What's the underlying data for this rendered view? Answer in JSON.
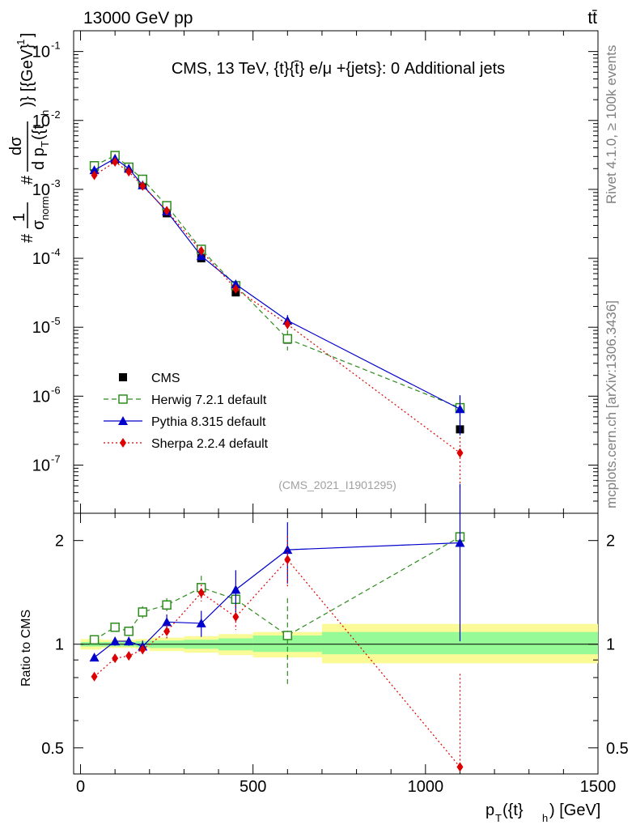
{
  "header": {
    "left": "13000 GeV pp",
    "right": "tt̄"
  },
  "side_labels": {
    "rivet": "Rivet 4.1.0, ≥ 100k events",
    "mcplots": "mcplots.cern.ch [arXiv:1306.3436]"
  },
  "chart_data": [
    {
      "type": "scatter",
      "panel": "main",
      "title": "CMS, 13 TeV, {t}{t̄} e/μ +{jets}: 0 Additional jets",
      "analysis_tag": "(CMS_2021_I1901295)",
      "yscale": "log",
      "ylim": [
        2e-08,
        0.2
      ],
      "xlim": [
        -20,
        1500
      ],
      "ylabel_parts": {
        "hash1": "#",
        "one": "1",
        "sigma": "σ",
        "norm": "norm",
        "hash2": "#",
        "dsigma": "dσ",
        "dpt": "d p",
        "T": "T",
        "arg": "({t",
        "h": "h",
        "close": ")} [{GeV}",
        "exp": "-1",
        "end": "]"
      },
      "yticks": [
        {
          "value": 0.1,
          "base": "10",
          "exp": "-1"
        },
        {
          "value": 0.01,
          "base": "10",
          "exp": "-2"
        },
        {
          "value": 0.001,
          "base": "10",
          "exp": "-3"
        },
        {
          "value": 0.0001,
          "base": "10",
          "exp": "-4"
        },
        {
          "value": 1e-05,
          "base": "10",
          "exp": "-5"
        },
        {
          "value": 1e-06,
          "base": "10",
          "exp": "-6"
        },
        {
          "value": 1e-07,
          "base": "10",
          "exp": "-7"
        }
      ],
      "legend": [
        {
          "label": "CMS",
          "color": "#000000",
          "style": "data"
        },
        {
          "label": "Herwig 7.2.1 default",
          "color": "#2e8b1e",
          "style": "dashed"
        },
        {
          "label": "Pythia 8.315 default",
          "color": "#0000cc",
          "style": "solid"
        },
        {
          "label": "Sherpa 2.2.4 default",
          "color": "#dd0000",
          "style": "dotted"
        }
      ],
      "legend_position": "bottom-left",
      "data": {
        "name": "CMS",
        "x": [
          40,
          100,
          140,
          180,
          250,
          350,
          450,
          600,
          1100
        ],
        "xlo": [
          20,
          80,
          120,
          160,
          200,
          300,
          400,
          500,
          700
        ],
        "xhi": [
          60,
          120,
          160,
          200,
          300,
          400,
          500,
          700,
          1500
        ],
        "y": [
          0.0021,
          0.0027,
          0.002,
          0.00118,
          0.00045,
          0.0001,
          3.2e-05,
          6.6e-06,
          3.3e-07
        ],
        "color": "#000000"
      },
      "series": [
        {
          "name": "Herwig 7.2.1 default",
          "color": "#2e8b1e",
          "dash": "6,4",
          "marker": "open-square",
          "x": [
            40,
            100,
            140,
            180,
            250,
            350,
            450,
            600,
            1100
          ],
          "y": [
            0.0022,
            0.0031,
            0.0021,
            0.0014,
            0.00058,
            0.000135,
            4e-05,
            6.8e-06,
            6.8e-07
          ],
          "err": [
            0,
            0,
            0,
            0,
            0,
            0,
            0,
            2.2e-06,
            3.5e-07
          ]
        },
        {
          "name": "Pythia 8.315 default",
          "color": "#0000cc",
          "dash": "",
          "marker": "triangle",
          "x": [
            40,
            100,
            140,
            180,
            250,
            350,
            450,
            600,
            1100
          ],
          "y": [
            0.0019,
            0.0028,
            0.002,
            0.00115,
            0.00048,
            0.000108,
            4.2e-05,
            1.25e-05,
            6.5e-07
          ],
          "err": [
            0,
            0,
            0,
            0,
            0,
            0,
            6e-06,
            2.5e-06,
            3.8e-07
          ]
        },
        {
          "name": "Sherpa 2.2.4 default",
          "color": "#dd0000",
          "dash": "2,3",
          "marker": "diamond",
          "x": [
            40,
            100,
            140,
            180,
            250,
            350,
            450,
            600,
            1100
          ],
          "y": [
            0.0016,
            0.0025,
            0.0018,
            0.00112,
            0.00049,
            0.000128,
            3.6e-05,
            1.1e-05,
            1.5e-07
          ],
          "err": [
            0,
            0,
            0,
            0,
            0,
            0,
            0,
            2e-06,
            1.05e-07
          ]
        }
      ]
    },
    {
      "type": "scatter",
      "panel": "ratio",
      "ylabel": "Ratio to CMS",
      "xlabel_parts": {
        "p": "p",
        "T": "T",
        "arg": "({t}",
        "h": "h",
        "unit": ") [GeV]"
      },
      "yscale": "log",
      "ylim": [
        0.42,
        2.4
      ],
      "xlim": [
        -20,
        1500
      ],
      "yticks": [
        0.5,
        1,
        2
      ],
      "ytick_labels": [
        "0.5",
        "1",
        "2"
      ],
      "xticks": [
        0,
        500,
        1000,
        1500
      ],
      "xtick_labels": [
        "0",
        "500",
        "1000",
        "1500"
      ],
      "bands": [
        {
          "xlo": 0,
          "xhi": 60,
          "y_lo": 0.985,
          "y_hi": 1.015,
          "y_lo2": 0.965,
          "y_hi2": 1.035
        },
        {
          "xlo": 60,
          "xhi": 120,
          "y_lo": 0.985,
          "y_hi": 1.015,
          "y_lo2": 0.975,
          "y_hi2": 1.03
        },
        {
          "xlo": 120,
          "xhi": 160,
          "y_lo": 0.985,
          "y_hi": 1.015,
          "y_lo2": 0.975,
          "y_hi2": 1.03
        },
        {
          "xlo": 160,
          "xhi": 200,
          "y_lo": 0.98,
          "y_hi": 1.02,
          "y_lo2": 0.97,
          "y_hi2": 1.035
        },
        {
          "xlo": 200,
          "xhi": 300,
          "y_lo": 0.975,
          "y_hi": 1.025,
          "y_lo2": 0.955,
          "y_hi2": 1.045
        },
        {
          "xlo": 300,
          "xhi": 400,
          "y_lo": 0.97,
          "y_hi": 1.03,
          "y_lo2": 0.945,
          "y_hi2": 1.055
        },
        {
          "xlo": 400,
          "xhi": 500,
          "y_lo": 0.96,
          "y_hi": 1.04,
          "y_lo2": 0.93,
          "y_hi2": 1.07
        },
        {
          "xlo": 500,
          "xhi": 700,
          "y_lo": 0.95,
          "y_hi": 1.06,
          "y_lo2": 0.915,
          "y_hi2": 1.085
        },
        {
          "xlo": 700,
          "xhi": 1500,
          "y_lo": 0.935,
          "y_hi": 1.085,
          "y_lo2": 0.88,
          "y_hi2": 1.145
        }
      ],
      "series": [
        {
          "name": "Herwig 7.2.1 default",
          "color": "#2e8b1e",
          "dash": "6,4",
          "marker": "open-square",
          "x": [
            40,
            100,
            140,
            180,
            250,
            350,
            450,
            600,
            1100
          ],
          "y": [
            1.03,
            1.12,
            1.09,
            1.24,
            1.3,
            1.46,
            1.35,
            1.06,
            2.05
          ],
          "err": [
            0.015,
            0.03,
            0.03,
            0.05,
            0.06,
            0.12,
            0.12,
            0.3,
            0.01
          ]
        },
        {
          "name": "Pythia 8.315 default",
          "color": "#0000cc",
          "dash": "",
          "marker": "triangle",
          "x": [
            40,
            100,
            140,
            180,
            250,
            350,
            450,
            600,
            1100
          ],
          "y": [
            0.915,
            1.02,
            1.02,
            0.985,
            1.16,
            1.15,
            1.44,
            1.88,
            1.97
          ],
          "err": [
            0.02,
            0.03,
            0.03,
            0.04,
            0.06,
            0.1,
            0.2,
            0.38,
            0.95
          ]
        },
        {
          "name": "Sherpa 2.2.4 default",
          "color": "#dd0000",
          "dash": "2,3",
          "marker": "diamond",
          "x": [
            40,
            100,
            140,
            180,
            250,
            350,
            450,
            600,
            1100
          ],
          "y": [
            0.805,
            0.91,
            0.925,
            0.965,
            1.09,
            1.41,
            1.2,
            1.76,
            0.44
          ],
          "err": [
            0.01,
            0.02,
            0.02,
            0.03,
            0.05,
            0.08,
            0.1,
            0.3,
            0.38
          ]
        }
      ]
    }
  ]
}
